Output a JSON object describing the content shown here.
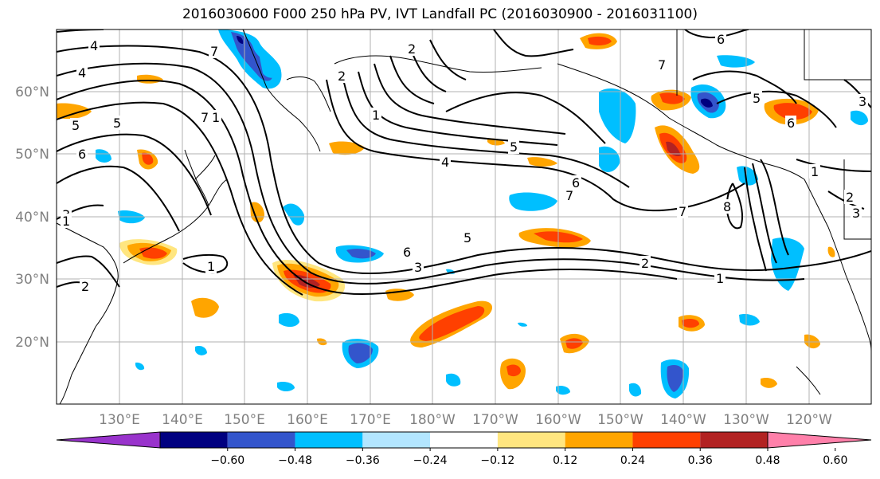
{
  "title": "2016030600 F000 250 hPa PV, IVT Landfall PC (2016030900 - 2016031100)",
  "lat_ticks": [
    "60°N",
    "50°N",
    "40°N",
    "30°N",
    "20°N"
  ],
  "lon_ticks": [
    "130°E",
    "140°E",
    "150°E",
    "160°E",
    "170°E",
    "180°W",
    "170°W",
    "160°W",
    "150°W",
    "140°W",
    "130°W",
    "120°W"
  ],
  "colorbar": {
    "colors": [
      "#9933cc",
      "#000080",
      "#3355cc",
      "#00bfff",
      "#b3e6ff",
      "#ffffff",
      "#ffe680",
      "#ffa500",
      "#ff4000",
      "#b22222",
      "#ff80aa"
    ],
    "ticks": [
      "−0.60",
      "−0.48",
      "−0.36",
      "−0.24",
      "−0.12",
      "0.12",
      "0.24",
      "0.36",
      "0.48",
      "0.60"
    ]
  },
  "contour_labels": [
    "4",
    "7",
    "4",
    "5",
    "6",
    "7",
    "2",
    "2",
    "1",
    "5",
    "4",
    "6",
    "7",
    "6",
    "7",
    "5",
    "3",
    "1",
    "2",
    "1",
    "7",
    "8",
    "5",
    "3",
    "6",
    "1",
    "2",
    "3",
    "6",
    "5",
    "3",
    "1",
    "2",
    "1"
  ]
}
